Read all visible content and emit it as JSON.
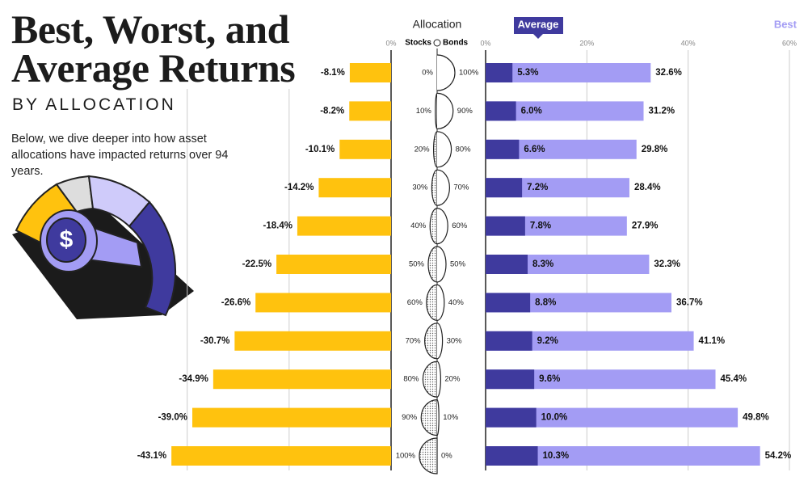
{
  "header": {
    "title": "Best, Worst, and Average Returns",
    "subtitle": "BY ALLOCATION",
    "description": "Below, we dive deeper into how asset allocations have impacted returns over 94 years.",
    "icon_symbol": "$"
  },
  "chart_data": {
    "type": "bar",
    "orientation": "horizontal",
    "allocation": {
      "title": "Allocation",
      "stocks_label": "Stocks",
      "bonds_label": "Bonds",
      "stocks": {
        "values": [
          0,
          10,
          20,
          30,
          40,
          50,
          60,
          70,
          80,
          90,
          100
        ],
        "value_labels": [
          "0%",
          "10%",
          "20%",
          "30%",
          "40%",
          "50%",
          "60%",
          "70%",
          "80%",
          "90%",
          "100%"
        ]
      },
      "bonds": {
        "values": [
          100,
          90,
          80,
          70,
          60,
          50,
          40,
          30,
          20,
          10,
          0
        ],
        "value_labels": [
          "100%",
          "90%",
          "80%",
          "70%",
          "60%",
          "50%",
          "40%",
          "30%",
          "20%",
          "10%",
          "0%"
        ]
      }
    },
    "worst_axis": {
      "xlim": [
        -45.5,
        0
      ],
      "xticks": [
        {
          "value": 0,
          "label": "0%"
        }
      ],
      "grid": [
        -40,
        -20
      ]
    },
    "returns_axis": {
      "xlim": [
        0,
        60
      ],
      "xticks": [
        {
          "value": 0,
          "label": "0%"
        },
        {
          "value": 20,
          "label": "20%"
        },
        {
          "value": 40,
          "label": "40%"
        },
        {
          "value": 60,
          "label": "60%"
        }
      ],
      "grid": true
    },
    "series": [
      {
        "color": "#ffc20e",
        "axis": "worst",
        "values": [
          -8.1,
          -8.2,
          -10.1,
          -14.2,
          -18.4,
          -22.5,
          -26.6,
          -30.7,
          -34.9,
          -39.0,
          -43.1
        ],
        "value_labels": [
          "-8.1%",
          "-8.2%",
          "-10.1%",
          "-14.2%",
          "-18.4%",
          "-22.5%",
          "-26.6%",
          "-30.7%",
          "-34.9%",
          "-39.0%",
          "-43.1%"
        ]
      },
      {
        "name": "Best",
        "color": "#a39cf4",
        "axis": "returns",
        "values": [
          32.6,
          31.2,
          29.8,
          28.4,
          27.9,
          32.3,
          36.7,
          41.1,
          45.4,
          49.8,
          54.2
        ],
        "value_labels": [
          "32.6%",
          "31.2%",
          "29.8%",
          "28.4%",
          "27.9%",
          "32.3%",
          "36.7%",
          "41.1%",
          "45.4%",
          "49.8%",
          "54.2%"
        ]
      },
      {
        "name": "Average",
        "color": "#3f3a9e",
        "axis": "returns",
        "values": [
          5.3,
          6.0,
          6.6,
          7.2,
          7.8,
          8.3,
          8.8,
          9.2,
          9.6,
          10.0,
          10.3
        ],
        "value_labels": [
          "5.3%",
          "6.0%",
          "6.6%",
          "7.2%",
          "7.8%",
          "8.3%",
          "8.8%",
          "9.2%",
          "9.6%",
          "10.0%",
          "10.3%"
        ]
      }
    ]
  }
}
